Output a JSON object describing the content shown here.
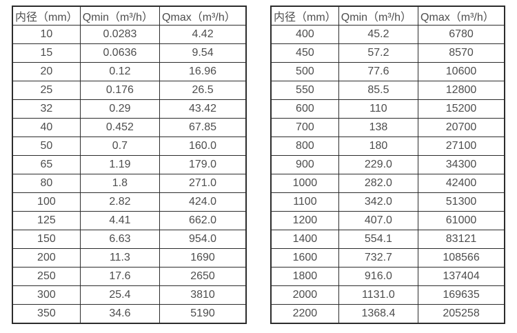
{
  "colors": {
    "text": "#4d4d4d",
    "border": "#2b2b2b",
    "background": "#ffffff"
  },
  "chart_data": [
    {
      "type": "table",
      "name": "flow-rate-table-small-diameters",
      "columns": [
        "内径（mm）",
        "Qmin（m³/h）",
        "Qmax（m³/h）"
      ],
      "rows": [
        [
          "10",
          "0.0283",
          "4.42"
        ],
        [
          "15",
          "0.0636",
          "9.54"
        ],
        [
          "20",
          "0.12",
          "16.96"
        ],
        [
          "25",
          "0.176",
          "26.5"
        ],
        [
          "32",
          "0.29",
          "43.42"
        ],
        [
          "40",
          "0.452",
          "67.85"
        ],
        [
          "50",
          "0.7",
          "160.0"
        ],
        [
          "65",
          "1.19",
          "179.0"
        ],
        [
          "80",
          "1.8",
          "271.0"
        ],
        [
          "100",
          "2.82",
          "424.0"
        ],
        [
          "125",
          "4.41",
          "662.0"
        ],
        [
          "150",
          "6.63",
          "954.0"
        ],
        [
          "200",
          "11.3",
          "1690"
        ],
        [
          "250",
          "17.6",
          "2650"
        ],
        [
          "300",
          "25.4",
          "3810"
        ],
        [
          "350",
          "34.6",
          "5190"
        ]
      ]
    },
    {
      "type": "table",
      "name": "flow-rate-table-large-diameters",
      "columns": [
        "内径（mm）",
        "Qmin（m³/h）",
        "Qmax（m³/h）"
      ],
      "rows": [
        [
          "400",
          "45.2",
          "6780"
        ],
        [
          "450",
          "57.2",
          "8570"
        ],
        [
          "500",
          "77.6",
          "10600"
        ],
        [
          "550",
          "85.5",
          "12800"
        ],
        [
          "600",
          "110",
          "15200"
        ],
        [
          "700",
          "138",
          "20700"
        ],
        [
          "800",
          "180",
          "27100"
        ],
        [
          "900",
          "229.0",
          "34300"
        ],
        [
          "1000",
          "282.0",
          "42400"
        ],
        [
          "1100",
          "342.0",
          "51300"
        ],
        [
          "1200",
          "407.0",
          "61000"
        ],
        [
          "1400",
          "554.1",
          "83121"
        ],
        [
          "1600",
          "732.7",
          "108566"
        ],
        [
          "1800",
          "916.0",
          "137404"
        ],
        [
          "2000",
          "1131.0",
          "169635"
        ],
        [
          "2200",
          "1368.4",
          "205258"
        ]
      ]
    }
  ]
}
